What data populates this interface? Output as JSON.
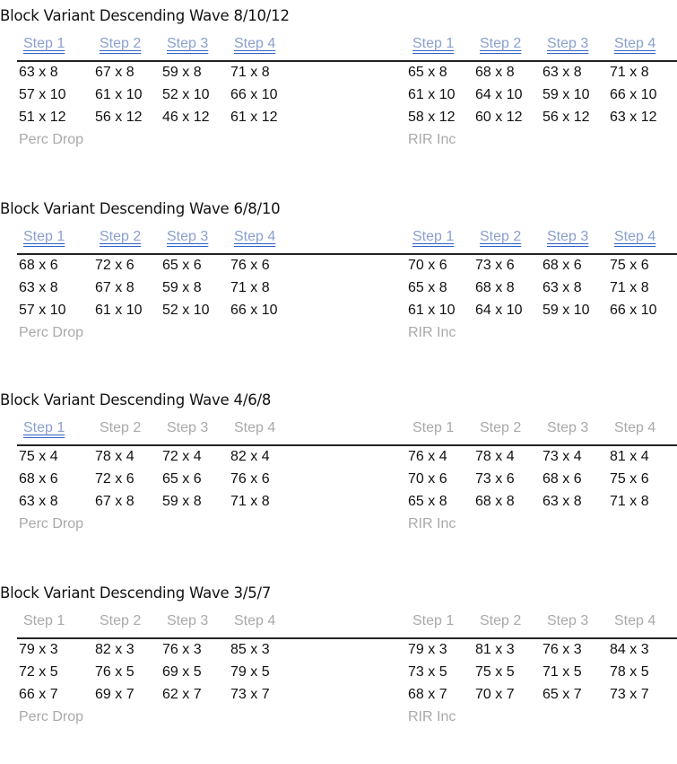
{
  "blocks": [
    {
      "title": "Block Variant Descending Wave 8/10/12",
      "left": {
        "headers": [
          "Step 1",
          "Step 2",
          "Step 3",
          "Step 4"
        ],
        "rows": [
          [
            "63 x 8",
            "67 x 8",
            "59 x 8",
            "71 x 8"
          ],
          [
            "57 x 10",
            "61 x 10",
            "52 x 10",
            "66 x 10"
          ],
          [
            "51 x 12",
            "56 x 12",
            "46 x 12",
            "61 x 12"
          ]
        ],
        "note": "Perc Drop"
      },
      "right": {
        "headers": [
          "Step 1",
          "Step 2",
          "Step 3",
          "Step 4"
        ],
        "rows": [
          [
            "65 x 8",
            "68 x 8",
            "63 x 8",
            "71 x 8"
          ],
          [
            "61 x 10",
            "64 x 10",
            "59 x 10",
            "66 x 10"
          ],
          [
            "58 x 12",
            "60 x 12",
            "56 x 12",
            "63 x 12"
          ]
        ],
        "note": "RIR Inc"
      }
    },
    {
      "title": "Block Variant Descending Wave 6/8/10",
      "left": {
        "headers": [
          "Step 1",
          "Step 2",
          "Step 3",
          "Step 4"
        ],
        "rows": [
          [
            "68 x 6",
            "72 x 6",
            "65 x 6",
            "76 x 6"
          ],
          [
            "63 x 8",
            "67 x 8",
            "59 x 8",
            "71 x 8"
          ],
          [
            "57 x 10",
            "61 x 10",
            "52 x 10",
            "66 x 10"
          ]
        ],
        "note": "Perc Drop"
      },
      "right": {
        "headers": [
          "Step 1",
          "Step 2",
          "Step 3",
          "Step 4"
        ],
        "rows": [
          [
            "70 x 6",
            "73 x 6",
            "68 x 6",
            "75 x 6"
          ],
          [
            "65 x 8",
            "68 x 8",
            "63 x 8",
            "71 x 8"
          ],
          [
            "61 x 10",
            "64 x 10",
            "59 x 10",
            "66 x 10"
          ]
        ],
        "note": "RIR Inc"
      }
    },
    {
      "title": "Block Variant Descending Wave 4/6/8",
      "left": {
        "headers": [
          "Step 1",
          "Step 2",
          "Step 3",
          "Step 4"
        ],
        "rows": [
          [
            "75 x 4",
            "78 x 4",
            "72 x 4",
            "82 x 4"
          ],
          [
            "68 x 6",
            "72 x 6",
            "65 x 6",
            "76 x 6"
          ],
          [
            "63 x 8",
            "67 x 8",
            "59 x 8",
            "71 x 8"
          ]
        ],
        "note": "Perc Drop"
      },
      "right": {
        "headers": [
          "Step 1",
          "Step 2",
          "Step 3",
          "Step 4"
        ],
        "rows": [
          [
            "76 x 4",
            "78 x 4",
            "73 x 4",
            "81 x 4"
          ],
          [
            "70 x 6",
            "73 x 6",
            "68 x 6",
            "75 x 6"
          ],
          [
            "65 x 8",
            "68 x 8",
            "63 x 8",
            "71 x 8"
          ]
        ],
        "note": "RIR Inc"
      }
    },
    {
      "title": "Block Variant Descending Wave 3/5/7",
      "left": {
        "headers": [
          "Step 1",
          "Step 2",
          "Step 3",
          "Step 4"
        ],
        "rows": [
          [
            "79 x 3",
            "82 x 3",
            "76 x 3",
            "85 x 3"
          ],
          [
            "72 x 5",
            "76 x 5",
            "69 x 5",
            "79 x 5"
          ],
          [
            "66 x 7",
            "69 x 7",
            "62 x 7",
            "73 x 7"
          ]
        ],
        "note": "Perc Drop"
      },
      "right": {
        "headers": [
          "Step 1",
          "Step 2",
          "Step 3",
          "Step 4"
        ],
        "rows": [
          [
            "79 x 3",
            "81 x 3",
            "76 x 3",
            "84 x 3"
          ],
          [
            "73 x 5",
            "75 x 5",
            "71 x 5",
            "78 x 5"
          ],
          [
            "68 x 7",
            "70 x 7",
            "65 x 7",
            "73 x 7"
          ]
        ],
        "note": "RIR Inc"
      }
    }
  ]
}
